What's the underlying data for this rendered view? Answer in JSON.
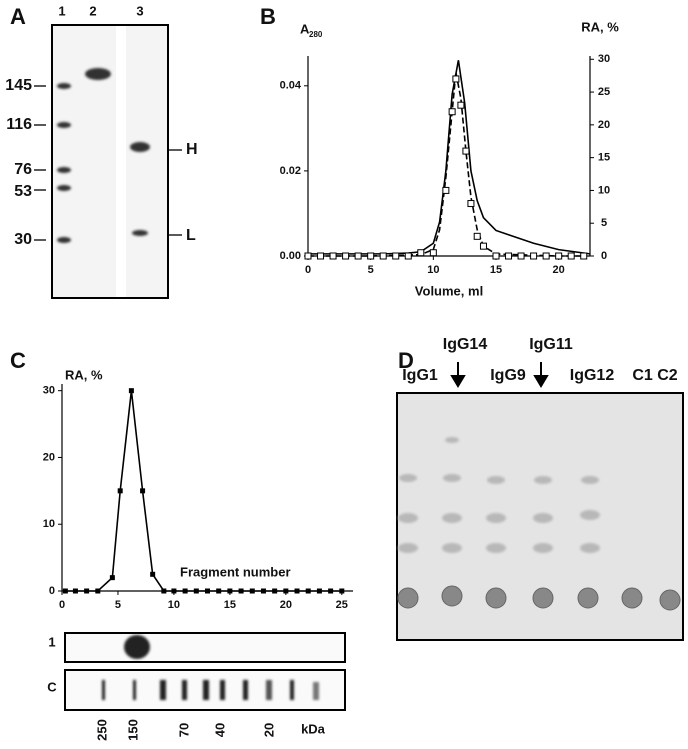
{
  "panels": {
    "A": {
      "letter": "A",
      "lanes": [
        "1",
        "2",
        "3"
      ],
      "markers": [
        "145",
        "116",
        "76",
        "53",
        "30"
      ],
      "bands": [
        "H",
        "L"
      ]
    },
    "C_strips": {
      "rows": [
        "1",
        "C"
      ],
      "markers": [
        "250",
        "150",
        "70",
        "40",
        "20"
      ],
      "unit": "kDa"
    },
    "D": {
      "letter": "D",
      "top_labels": [
        "IgG14",
        "IgG11"
      ],
      "lane_labels": [
        "IgG1",
        "IgG9",
        "IgG12",
        "C1 C2"
      ]
    }
  },
  "chart_data": [
    {
      "type": "line",
      "panel_label": "B",
      "y_label": "A",
      "y_label_subscript": "280",
      "y2_label": "RA, %",
      "x_label": "Volume, ml",
      "xlim": [
        0,
        22.5
      ],
      "xticks": [
        0,
        5,
        10,
        15,
        20
      ],
      "ylim": [
        0,
        0.047
      ],
      "yticks": [
        {
          "value": 0,
          "label": "0.00"
        },
        {
          "value": 0.02,
          "label": "0.02"
        },
        {
          "value": 0.04,
          "label": "0.04"
        }
      ],
      "y2lim": [
        0,
        30.5
      ],
      "y2ticks": [
        0,
        5,
        10,
        15,
        20,
        25,
        30
      ],
      "series": [
        {
          "color": "#000000",
          "line_style": "solid",
          "marker": "none",
          "x": [
            0,
            2,
            4,
            6,
            8,
            9,
            10,
            10.5,
            11,
            11.5,
            12,
            12.5,
            13,
            13.5,
            14,
            15,
            16,
            18,
            20,
            22.5
          ],
          "values": [
            0.0005,
            0.0005,
            0.0005,
            0.0005,
            0.0007,
            0.001,
            0.003,
            0.008,
            0.02,
            0.038,
            0.046,
            0.036,
            0.02,
            0.013,
            0.009,
            0.006,
            0.005,
            0.003,
            0.0015,
            0.0005
          ]
        },
        {
          "color": "#000000",
          "line_style": "dashed",
          "marker": "none",
          "axis": "y2",
          "x": [
            0,
            5,
            9,
            10,
            10.5,
            11,
            11.5,
            11.8,
            12.2,
            12.6,
            13,
            13.5,
            14,
            15,
            20,
            22
          ],
          "values": [
            0,
            0,
            0.2,
            1,
            4,
            12,
            22,
            28,
            24,
            16,
            9,
            4,
            1.5,
            0.3,
            0,
            0
          ]
        },
        {
          "color": "#000000",
          "line_style": "none",
          "marker": "square",
          "axis": "y2",
          "x": [
            0,
            1,
            2,
            3,
            4,
            5,
            6,
            7,
            8,
            9,
            10,
            11,
            11.5,
            11.8,
            12.2,
            12.6,
            13,
            13.5,
            14,
            15,
            16,
            17,
            18,
            19,
            20,
            21,
            22
          ],
          "values": [
            0,
            0,
            0,
            0,
            0,
            0,
            0,
            0,
            0,
            0.5,
            0.5,
            10,
            22,
            27,
            23,
            16,
            8,
            3,
            1.5,
            0,
            0,
            0,
            0,
            0,
            0,
            0,
            0
          ]
        }
      ]
    },
    {
      "type": "line",
      "panel_label": "C",
      "y_label": "RA, %",
      "annotation": "Fragment number",
      "xlim": [
        0,
        26
      ],
      "xticks": [
        0,
        5,
        10,
        15,
        20,
        25
      ],
      "ylim": [
        0,
        31
      ],
      "yticks": [
        0,
        10,
        20,
        30
      ],
      "series": [
        {
          "color": "#000000",
          "line_style": "solid",
          "marker": "square-filled",
          "x": [
            0.3,
            1.2,
            2.2,
            3.2,
            4.5,
            5.2,
            6.2,
            7.2,
            8.1,
            9.1,
            10,
            11,
            12,
            13,
            14,
            15,
            16,
            17,
            18,
            19,
            20,
            21,
            22,
            23,
            24,
            25
          ],
          "values": [
            0,
            0,
            0,
            0,
            2,
            15,
            30,
            15,
            2.5,
            0,
            0,
            0,
            0,
            0,
            0,
            0,
            0,
            0,
            0,
            0,
            0,
            0,
            0,
            0,
            0,
            0
          ]
        }
      ]
    }
  ]
}
